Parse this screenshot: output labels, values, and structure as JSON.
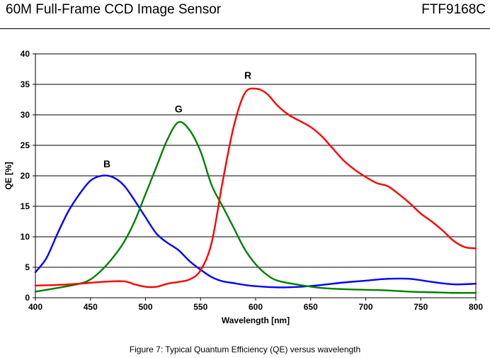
{
  "header": {
    "title": "60M Full-Frame CCD Image Sensor",
    "code": "FTF9168C"
  },
  "caption": "Figure 7: Typical Quantum Efficiency (QE) versus wavelength",
  "chart_data": {
    "type": "line",
    "title": "",
    "xlabel": "Wavelength [nm]",
    "ylabel": "QE [%]",
    "xlim": [
      400,
      800
    ],
    "ylim": [
      0,
      40
    ],
    "xticks": [
      400,
      450,
      500,
      550,
      600,
      650,
      700,
      750,
      800
    ],
    "yticks": [
      0,
      5,
      10,
      15,
      20,
      25,
      30,
      35,
      40
    ],
    "grid": "horizontal",
    "legend": "none",
    "series": [
      {
        "name": "B",
        "color": "#0000ff",
        "label_at": [
          465,
          22
        ],
        "points": [
          [
            400,
            4.2
          ],
          [
            410,
            6.5
          ],
          [
            420,
            10.5
          ],
          [
            430,
            14.2
          ],
          [
            440,
            17
          ],
          [
            450,
            19.2
          ],
          [
            460,
            20
          ],
          [
            470,
            19.8
          ],
          [
            480,
            18.5
          ],
          [
            490,
            16
          ],
          [
            500,
            13.2
          ],
          [
            510,
            10.5
          ],
          [
            520,
            9
          ],
          [
            530,
            7.8
          ],
          [
            540,
            6
          ],
          [
            550,
            4.6
          ],
          [
            560,
            3.4
          ],
          [
            570,
            2.7
          ],
          [
            580,
            2.4
          ],
          [
            590,
            2.1
          ],
          [
            600,
            1.9
          ],
          [
            620,
            1.7
          ],
          [
            640,
            1.8
          ],
          [
            660,
            2.1
          ],
          [
            680,
            2.5
          ],
          [
            700,
            2.8
          ],
          [
            720,
            3.1
          ],
          [
            740,
            3.1
          ],
          [
            760,
            2.6
          ],
          [
            780,
            2.2
          ],
          [
            800,
            2.3
          ]
        ]
      },
      {
        "name": "G",
        "color": "#008000",
        "label_at": [
          530,
          31
        ],
        "points": [
          [
            400,
            1.0
          ],
          [
            420,
            1.6
          ],
          [
            440,
            2.3
          ],
          [
            450,
            3
          ],
          [
            460,
            4.5
          ],
          [
            470,
            6.5
          ],
          [
            480,
            9
          ],
          [
            490,
            12.5
          ],
          [
            500,
            17
          ],
          [
            510,
            21.5
          ],
          [
            520,
            26
          ],
          [
            530,
            28.8
          ],
          [
            540,
            27.5
          ],
          [
            550,
            24
          ],
          [
            560,
            18.5
          ],
          [
            570,
            15
          ],
          [
            580,
            11.5
          ],
          [
            590,
            8
          ],
          [
            600,
            5.5
          ],
          [
            610,
            3.8
          ],
          [
            620,
            2.8
          ],
          [
            640,
            2.1
          ],
          [
            660,
            1.6
          ],
          [
            680,
            1.4
          ],
          [
            700,
            1.3
          ],
          [
            720,
            1.2
          ],
          [
            740,
            1.0
          ],
          [
            760,
            0.9
          ],
          [
            780,
            0.8
          ],
          [
            800,
            0.8
          ]
        ]
      },
      {
        "name": "R",
        "color": "#ff0000",
        "label_at": [
          593,
          36.5
        ],
        "points": [
          [
            400,
            2.0
          ],
          [
            420,
            2.1
          ],
          [
            440,
            2.3
          ],
          [
            460,
            2.6
          ],
          [
            480,
            2.7
          ],
          [
            490,
            2.2
          ],
          [
            500,
            1.8
          ],
          [
            510,
            1.8
          ],
          [
            520,
            2.3
          ],
          [
            530,
            2.6
          ],
          [
            540,
            3.0
          ],
          [
            550,
            4.5
          ],
          [
            560,
            9
          ],
          [
            570,
            19
          ],
          [
            580,
            28
          ],
          [
            590,
            33.5
          ],
          [
            600,
            34.3
          ],
          [
            610,
            33.5
          ],
          [
            620,
            31.5
          ],
          [
            630,
            30
          ],
          [
            640,
            29
          ],
          [
            650,
            28
          ],
          [
            660,
            26.5
          ],
          [
            670,
            24.5
          ],
          [
            680,
            22.5
          ],
          [
            690,
            21
          ],
          [
            700,
            19.8
          ],
          [
            710,
            18.8
          ],
          [
            720,
            18.3
          ],
          [
            730,
            17
          ],
          [
            740,
            15.5
          ],
          [
            750,
            13.8
          ],
          [
            760,
            12.5
          ],
          [
            770,
            11
          ],
          [
            780,
            9.3
          ],
          [
            790,
            8.3
          ],
          [
            800,
            8.1
          ]
        ]
      }
    ]
  }
}
